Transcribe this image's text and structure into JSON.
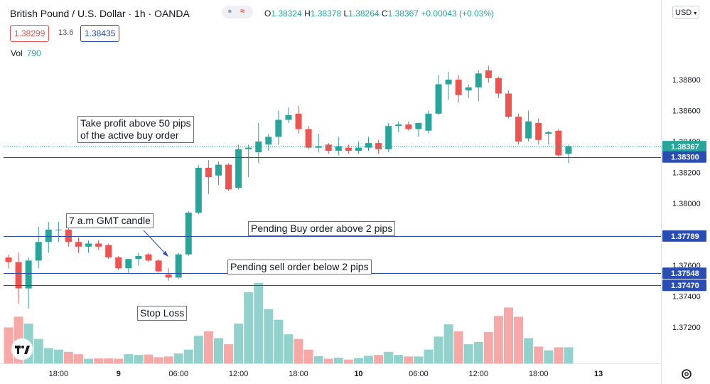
{
  "header": {
    "symbol_title": "British Pound / U.S. Dollar · 1h · OANDA",
    "ohlc": {
      "o_label": "O",
      "o": "1.38324",
      "h_label": "H",
      "h": "1.38378",
      "l_label": "L",
      "l": "1.38264",
      "c_label": "C",
      "c": "1.38367",
      "change": "+0.00043 (+0.03%)"
    },
    "sell_price": "1.38299",
    "spread": "13.6",
    "buy_price": "1.38435",
    "volume_label": "Vol",
    "volume_value": "790",
    "currency": "USD",
    "colors": {
      "up": "#26a69a",
      "down": "#ef5350",
      "price_line": "#2a4db3"
    }
  },
  "annotations": {
    "take_profit": "Take profit above 50 pips\nof the active buy order",
    "candle_7am": "7 a.m GMT candle",
    "pending_buy": "Pending Buy order above 2 pips",
    "pending_sell": "Pending sell order below 2 pips",
    "stop_loss": "Stop Loss"
  },
  "chart_data": {
    "type": "candlestick",
    "instrument": "British Pound / U.S. Dollar",
    "interval": "1h",
    "ylim": [
      1.3708,
      1.3897
    ],
    "y_ticks": [
      "1.38800",
      "1.38600",
      "1.38400",
      "1.38200",
      "1.38000",
      "1.37600",
      "1.37400",
      "1.37200"
    ],
    "x_ticks": [
      "18:00",
      "9",
      "06:00",
      "12:00",
      "18:00",
      "10",
      "06:00",
      "12:00",
      "18:00",
      "13"
    ],
    "grid": false,
    "price_levels": [
      {
        "label": "1.38367",
        "value": 1.38367,
        "style": "current",
        "color": "#26a69a"
      },
      {
        "label": "1.38300",
        "value": 1.383,
        "style": "line",
        "color": "#2a4db3"
      },
      {
        "label": "1.37789",
        "value": 1.37789,
        "style": "line",
        "color": "#2a4db3"
      },
      {
        "label": "1.37548",
        "value": 1.37548,
        "style": "line",
        "color": "#2a4db3"
      },
      {
        "label": "1.37470",
        "value": 1.3747,
        "style": "line",
        "color": "#2a4db3"
      }
    ],
    "candles": [
      {
        "o": 1.3765,
        "h": 1.3767,
        "l": 1.3758,
        "c": 1.3762,
        "v": 470
      },
      {
        "o": 1.3762,
        "h": 1.3768,
        "l": 1.3735,
        "c": 1.3745,
        "v": 610
      },
      {
        "o": 1.3745,
        "h": 1.3765,
        "l": 1.3732,
        "c": 1.3763,
        "v": 520
      },
      {
        "o": 1.3763,
        "h": 1.3785,
        "l": 1.3758,
        "c": 1.3775,
        "v": 320
      },
      {
        "o": 1.3775,
        "h": 1.3788,
        "l": 1.3768,
        "c": 1.3783,
        "v": 200
      },
      {
        "o": 1.3783,
        "h": 1.3788,
        "l": 1.3775,
        "c": 1.3783,
        "v": 180
      },
      {
        "o": 1.3783,
        "h": 1.3785,
        "l": 1.3772,
        "c": 1.3775,
        "v": 150
      },
      {
        "o": 1.3775,
        "h": 1.3778,
        "l": 1.3768,
        "c": 1.3772,
        "v": 120
      },
      {
        "o": 1.3772,
        "h": 1.3776,
        "l": 1.3768,
        "c": 1.3774,
        "v": 60
      },
      {
        "o": 1.3774,
        "h": 1.3776,
        "l": 1.377,
        "c": 1.3772,
        "v": 65
      },
      {
        "o": 1.3773,
        "h": 1.3774,
        "l": 1.3764,
        "c": 1.3765,
        "v": 65
      },
      {
        "o": 1.3765,
        "h": 1.3766,
        "l": 1.3757,
        "c": 1.3758,
        "v": 60
      },
      {
        "o": 1.3758,
        "h": 1.3764,
        "l": 1.3755,
        "c": 1.3764,
        "v": 120
      },
      {
        "o": 1.3764,
        "h": 1.3768,
        "l": 1.376,
        "c": 1.3766,
        "v": 110
      },
      {
        "o": 1.3767,
        "h": 1.3768,
        "l": 1.3762,
        "c": 1.3763,
        "v": 115
      },
      {
        "o": 1.3763,
        "h": 1.3764,
        "l": 1.3755,
        "c": 1.3756,
        "v": 80
      },
      {
        "o": 1.3754,
        "h": 1.3758,
        "l": 1.375,
        "c": 1.3752,
        "v": 90
      },
      {
        "o": 1.3752,
        "h": 1.3768,
        "l": 1.3751,
        "c": 1.3767,
        "v": 130
      },
      {
        "o": 1.3767,
        "h": 1.3795,
        "l": 1.3766,
        "c": 1.3794,
        "v": 180
      },
      {
        "o": 1.3794,
        "h": 1.3825,
        "l": 1.3793,
        "c": 1.3823,
        "v": 360
      },
      {
        "o": 1.3823,
        "h": 1.3828,
        "l": 1.3806,
        "c": 1.3817,
        "v": 420
      },
      {
        "o": 1.3818,
        "h": 1.3827,
        "l": 1.3812,
        "c": 1.3825,
        "v": 330
      },
      {
        "o": 1.3825,
        "h": 1.3826,
        "l": 1.3808,
        "c": 1.3809,
        "v": 250
      },
      {
        "o": 1.381,
        "h": 1.3838,
        "l": 1.3809,
        "c": 1.3835,
        "v": 520
      },
      {
        "o": 1.3835,
        "h": 1.3838,
        "l": 1.3817,
        "c": 1.3836,
        "v": 930
      },
      {
        "o": 1.3833,
        "h": 1.3852,
        "l": 1.3826,
        "c": 1.384,
        "v": 1050
      },
      {
        "o": 1.3838,
        "h": 1.3845,
        "l": 1.3834,
        "c": 1.3843,
        "v": 710
      },
      {
        "o": 1.3843,
        "h": 1.386,
        "l": 1.3838,
        "c": 1.3854,
        "v": 570
      },
      {
        "o": 1.3854,
        "h": 1.3862,
        "l": 1.3852,
        "c": 1.3857,
        "v": 380
      },
      {
        "o": 1.3858,
        "h": 1.3863,
        "l": 1.3845,
        "c": 1.3848,
        "v": 320
      },
      {
        "o": 1.3848,
        "h": 1.385,
        "l": 1.3835,
        "c": 1.3836,
        "v": 180
      },
      {
        "o": 1.3836,
        "h": 1.3845,
        "l": 1.3833,
        "c": 1.3837,
        "v": 95
      },
      {
        "o": 1.3838,
        "h": 1.3839,
        "l": 1.3832,
        "c": 1.3834,
        "v": 60
      },
      {
        "o": 1.3834,
        "h": 1.3843,
        "l": 1.3831,
        "c": 1.3837,
        "v": 75
      },
      {
        "o": 1.3836,
        "h": 1.3838,
        "l": 1.3832,
        "c": 1.3834,
        "v": 50
      },
      {
        "o": 1.3834,
        "h": 1.384,
        "l": 1.3832,
        "c": 1.3836,
        "v": 70
      },
      {
        "o": 1.3836,
        "h": 1.3843,
        "l": 1.3834,
        "c": 1.3839,
        "v": 100
      },
      {
        "o": 1.3839,
        "h": 1.3841,
        "l": 1.3832,
        "c": 1.3835,
        "v": 110
      },
      {
        "o": 1.3835,
        "h": 1.3852,
        "l": 1.3833,
        "c": 1.385,
        "v": 150
      },
      {
        "o": 1.385,
        "h": 1.3853,
        "l": 1.3846,
        "c": 1.3851,
        "v": 110
      },
      {
        "o": 1.3851,
        "h": 1.3853,
        "l": 1.3847,
        "c": 1.3848,
        "v": 90
      },
      {
        "o": 1.3848,
        "h": 1.3852,
        "l": 1.3843,
        "c": 1.3852,
        "v": 90
      },
      {
        "o": 1.3847,
        "h": 1.386,
        "l": 1.3845,
        "c": 1.3858,
        "v": 180
      },
      {
        "o": 1.3858,
        "h": 1.3883,
        "l": 1.3857,
        "c": 1.3877,
        "v": 350
      },
      {
        "o": 1.3877,
        "h": 1.3885,
        "l": 1.3867,
        "c": 1.388,
        "v": 510
      },
      {
        "o": 1.388,
        "h": 1.3883,
        "l": 1.3865,
        "c": 1.387,
        "v": 420
      },
      {
        "o": 1.3873,
        "h": 1.3877,
        "l": 1.3868,
        "c": 1.3875,
        "v": 250
      },
      {
        "o": 1.3875,
        "h": 1.3886,
        "l": 1.3866,
        "c": 1.3884,
        "v": 280
      },
      {
        "o": 1.3886,
        "h": 1.3889,
        "l": 1.3878,
        "c": 1.3881,
        "v": 410
      },
      {
        "o": 1.3881,
        "h": 1.3882,
        "l": 1.3868,
        "c": 1.3871,
        "v": 620
      },
      {
        "o": 1.3871,
        "h": 1.3873,
        "l": 1.3855,
        "c": 1.3856,
        "v": 730
      },
      {
        "o": 1.3856,
        "h": 1.3858,
        "l": 1.3838,
        "c": 1.384,
        "v": 610
      },
      {
        "o": 1.3842,
        "h": 1.386,
        "l": 1.384,
        "c": 1.3853,
        "v": 330
      },
      {
        "o": 1.3852,
        "h": 1.3855,
        "l": 1.3838,
        "c": 1.3841,
        "v": 220
      },
      {
        "o": 1.3845,
        "h": 1.3847,
        "l": 1.3838,
        "c": 1.3846,
        "v": 170
      },
      {
        "o": 1.3847,
        "h": 1.3848,
        "l": 1.383,
        "c": 1.3831,
        "v": 210
      },
      {
        "o": 1.3832,
        "h": 1.3838,
        "l": 1.3826,
        "c": 1.3837,
        "v": 210
      }
    ]
  },
  "toolbar": {
    "settings_icon": "gear-icon",
    "logo_icon": "tradingview-logo-icon"
  }
}
